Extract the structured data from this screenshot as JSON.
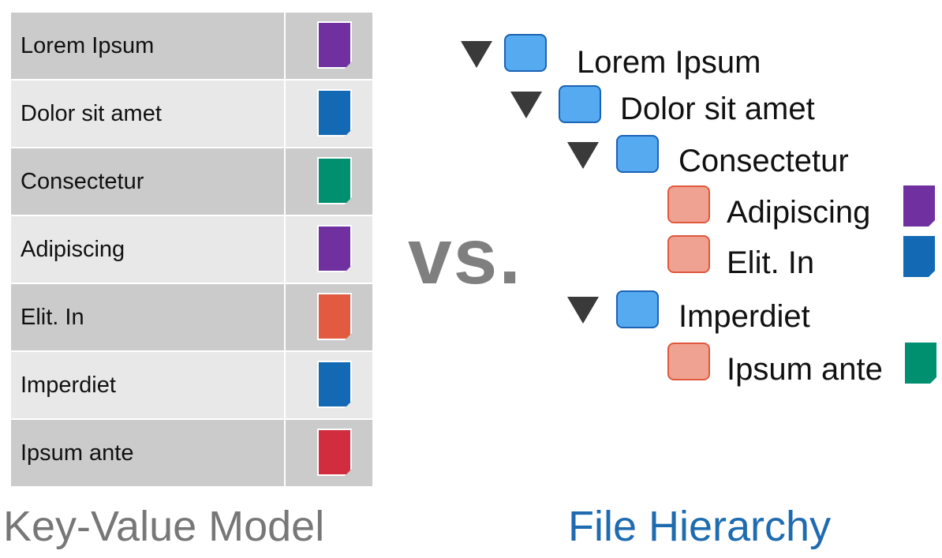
{
  "key_value_model": {
    "caption": "Key-Value Model",
    "rows": [
      {
        "key": "Lorem Ipsum",
        "color": "#7030a0",
        "shade": "dark"
      },
      {
        "key": "Dolor sit amet",
        "color": "#1369b3",
        "shade": "light"
      },
      {
        "key": "Consectetur",
        "color": "#009070",
        "shade": "dark"
      },
      {
        "key": "Adipiscing",
        "color": "#7030a0",
        "shade": "light"
      },
      {
        "key": "Elit. In",
        "color": "#e25a40",
        "shade": "dark"
      },
      {
        "key": "Imperdiet",
        "color": "#1369b3",
        "shade": "light"
      },
      {
        "key": "Ipsum ante",
        "color": "#d12d3e",
        "shade": "dark"
      }
    ]
  },
  "vs_label": "vs.",
  "file_hierarchy": {
    "caption": "File Hierarchy",
    "nodes": [
      {
        "label": "Lorem Ipsum",
        "kind": "folder",
        "icon": "folder-icon"
      },
      {
        "label": "Dolor sit amet",
        "kind": "folder",
        "icon": "folder-icon"
      },
      {
        "label": "Consectetur",
        "kind": "folder",
        "icon": "folder-icon"
      },
      {
        "label": "Adipiscing",
        "kind": "file",
        "icon": "file-icon",
        "doc_color": "#7030a0"
      },
      {
        "label": "Elit. In",
        "kind": "file",
        "icon": "file-icon",
        "doc_color": "#1369b3"
      },
      {
        "label": "Imperdiet",
        "kind": "folder",
        "icon": "folder-icon"
      },
      {
        "label": "Ipsum ante",
        "kind": "file",
        "icon": "file-icon",
        "doc_color": "#009070"
      }
    ]
  },
  "colors": {
    "folder_fill": "#56aaf0",
    "file_fill": "#f0a292",
    "caption_left": "#777777",
    "caption_right": "#1e6bb0"
  }
}
